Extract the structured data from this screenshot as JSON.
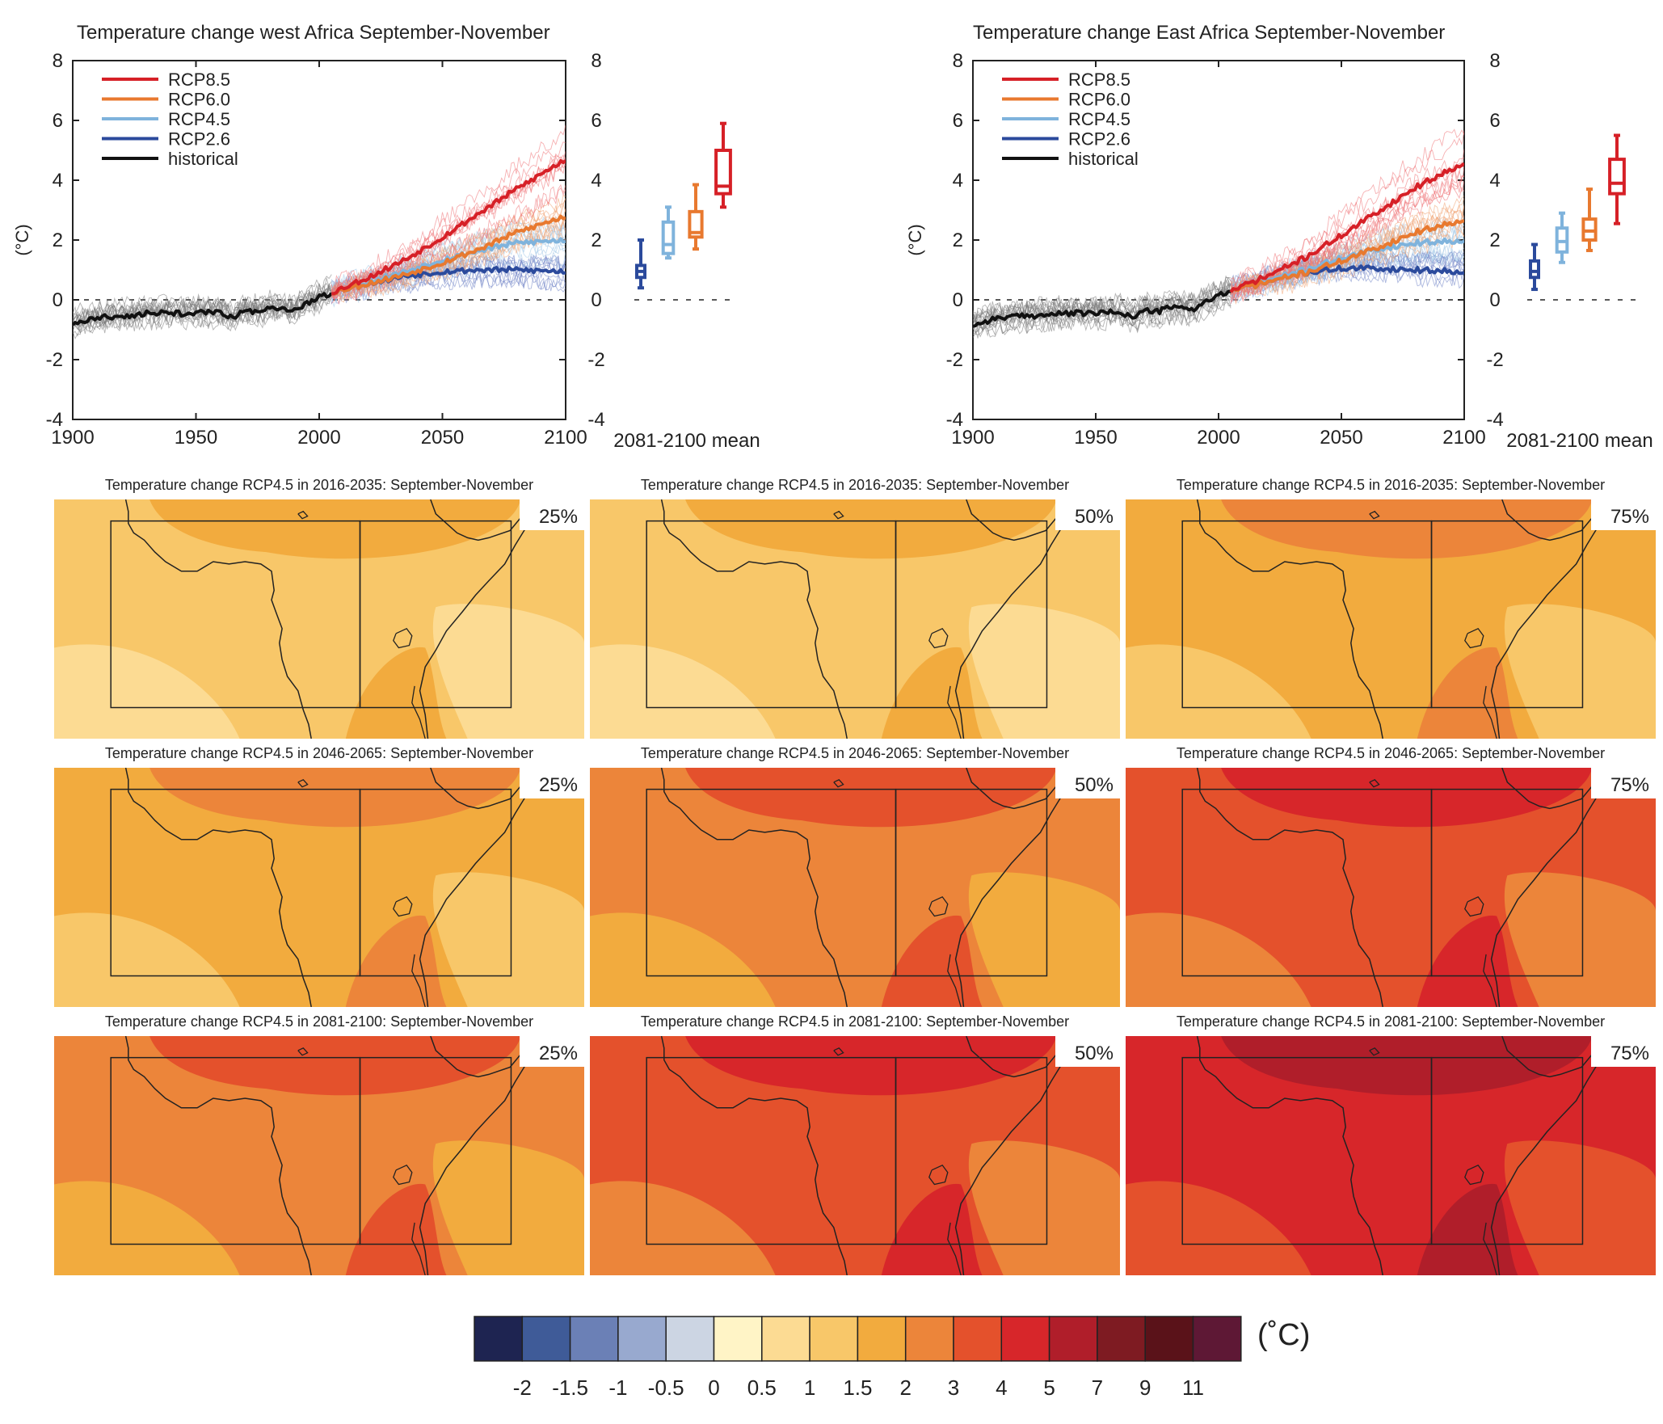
{
  "colors": {
    "rcp85": "#d62027",
    "rcp60": "#e8792f",
    "rcp45": "#7fb3dc",
    "rcp26": "#2b4a9c",
    "historical": "#111111",
    "axis": "#222222"
  },
  "chart_data": [
    {
      "type": "line",
      "title": "Temperature change west Africa September-November",
      "ylabel": "(°C)",
      "xlim": [
        1900,
        2100
      ],
      "ylim": [
        -4,
        8
      ],
      "xticks": [
        "1900",
        "1950",
        "2000",
        "2050",
        "2100"
      ],
      "yticks": [
        "-4",
        "-2",
        "0",
        "2",
        "4",
        "6",
        "8"
      ],
      "legend_position": "top-left",
      "legend": [
        "RCP8.5",
        "RCP6.0",
        "RCP4.5",
        "RCP2.6",
        "historical"
      ],
      "boxplot_label": "2081-2100 mean",
      "series": [
        {
          "name": "historical",
          "color": "#111111",
          "x": [
            1900,
            1910,
            1920,
            1930,
            1940,
            1950,
            1960,
            1965,
            1970,
            1975,
            1980,
            1990,
            1995,
            2005
          ],
          "y": [
            -0.8,
            -0.6,
            -0.55,
            -0.45,
            -0.45,
            -0.45,
            -0.4,
            -0.6,
            -0.35,
            -0.45,
            -0.3,
            -0.35,
            -0.1,
            0.25
          ]
        },
        {
          "name": "RCP2.6",
          "color": "#2b4a9c",
          "x": [
            2005,
            2020,
            2035,
            2050,
            2065,
            2080,
            2100
          ],
          "y": [
            0.25,
            0.55,
            0.8,
            0.95,
            1.0,
            1.0,
            0.95
          ]
        },
        {
          "name": "RCP4.5",
          "color": "#7fb3dc",
          "x": [
            2005,
            2020,
            2035,
            2050,
            2065,
            2080,
            2100
          ],
          "y": [
            0.25,
            0.6,
            0.95,
            1.35,
            1.65,
            1.9,
            2.0
          ]
        },
        {
          "name": "RCP6.0",
          "color": "#e8792f",
          "x": [
            2005,
            2020,
            2035,
            2050,
            2065,
            2080,
            2100
          ],
          "y": [
            0.25,
            0.55,
            0.85,
            1.25,
            1.7,
            2.25,
            2.8
          ]
        },
        {
          "name": "RCP8.5",
          "color": "#d62027",
          "x": [
            2005,
            2020,
            2035,
            2050,
            2065,
            2080,
            2100
          ],
          "y": [
            0.25,
            0.75,
            1.35,
            2.1,
            2.9,
            3.7,
            4.7
          ]
        }
      ],
      "boxplots": [
        {
          "name": "RCP2.6",
          "color": "#2b4a9c",
          "min": 0.4,
          "q1": 0.75,
          "median": 0.95,
          "q3": 1.15,
          "max": 2.0
        },
        {
          "name": "RCP4.5",
          "color": "#7fb3dc",
          "min": 1.4,
          "q1": 1.55,
          "median": 1.85,
          "q3": 2.6,
          "max": 3.1
        },
        {
          "name": "RCP6.0",
          "color": "#e8792f",
          "min": 1.7,
          "q1": 2.1,
          "median": 2.25,
          "q3": 2.95,
          "max": 3.85
        },
        {
          "name": "RCP8.5",
          "color": "#d62027",
          "min": 3.1,
          "q1": 3.55,
          "median": 3.8,
          "q3": 5.0,
          "max": 5.9
        }
      ]
    },
    {
      "type": "line",
      "title": "Temperature change East Africa September-November",
      "ylabel": "(°C)",
      "xlim": [
        1900,
        2100
      ],
      "ylim": [
        -4,
        8
      ],
      "xticks": [
        "1900",
        "1950",
        "2000",
        "2050",
        "2100"
      ],
      "yticks": [
        "-4",
        "-2",
        "0",
        "2",
        "4",
        "6",
        "8"
      ],
      "legend_position": "top-left",
      "legend": [
        "RCP8.5",
        "RCP6.0",
        "RCP4.5",
        "RCP2.6",
        "historical"
      ],
      "boxplot_label": "2081-2100 mean",
      "series": [
        {
          "name": "historical",
          "color": "#111111",
          "x": [
            1900,
            1910,
            1920,
            1930,
            1940,
            1950,
            1960,
            1965,
            1970,
            1975,
            1980,
            1990,
            1995,
            2005
          ],
          "y": [
            -0.85,
            -0.6,
            -0.55,
            -0.5,
            -0.45,
            -0.45,
            -0.4,
            -0.6,
            -0.35,
            -0.4,
            -0.25,
            -0.3,
            -0.05,
            0.3
          ]
        },
        {
          "name": "RCP2.6",
          "color": "#2b4a9c",
          "x": [
            2005,
            2020,
            2035,
            2050,
            2065,
            2080,
            2100
          ],
          "y": [
            0.3,
            0.6,
            0.9,
            1.05,
            1.05,
            1.0,
            0.95
          ]
        },
        {
          "name": "RCP4.5",
          "color": "#7fb3dc",
          "x": [
            2005,
            2020,
            2035,
            2050,
            2065,
            2080,
            2100
          ],
          "y": [
            0.3,
            0.65,
            1.0,
            1.4,
            1.7,
            1.9,
            2.0
          ]
        },
        {
          "name": "RCP6.0",
          "color": "#e8792f",
          "x": [
            2005,
            2020,
            2035,
            2050,
            2065,
            2080,
            2100
          ],
          "y": [
            0.3,
            0.6,
            0.9,
            1.3,
            1.75,
            2.25,
            2.7
          ]
        },
        {
          "name": "RCP8.5",
          "color": "#d62027",
          "x": [
            2005,
            2020,
            2035,
            2050,
            2065,
            2080,
            2100
          ],
          "y": [
            0.3,
            0.8,
            1.4,
            2.15,
            2.95,
            3.75,
            4.6
          ]
        }
      ],
      "boxplots": [
        {
          "name": "RCP2.6",
          "color": "#2b4a9c",
          "min": 0.35,
          "q1": 0.75,
          "median": 0.95,
          "q3": 1.3,
          "max": 1.85
        },
        {
          "name": "RCP4.5",
          "color": "#7fb3dc",
          "min": 1.25,
          "q1": 1.6,
          "median": 1.95,
          "q3": 2.4,
          "max": 2.9
        },
        {
          "name": "RCP6.0",
          "color": "#e8792f",
          "min": 1.65,
          "q1": 2.0,
          "median": 2.3,
          "q3": 2.7,
          "max": 3.7
        },
        {
          "name": "RCP8.5",
          "color": "#d62027",
          "min": 2.55,
          "q1": 3.55,
          "median": 3.9,
          "q3": 4.7,
          "max": 5.5
        }
      ]
    },
    {
      "type": "heatmap",
      "panel_titles": [
        "Temperature change RCP4.5 in 2016-2035: September-November",
        "Temperature change RCP4.5 in 2046-2065: September-November",
        "Temperature change RCP4.5 in 2081-2100: September-November"
      ],
      "percentiles": [
        "25%",
        "50%",
        "75%"
      ],
      "colorbar": {
        "unit": "(˚C)",
        "tick_labels": [
          "-2",
          "-1.5",
          "-1",
          "-0.5",
          "0",
          "0.5",
          "1",
          "1.5",
          "2",
          "3",
          "4",
          "5",
          "7",
          "9",
          "11"
        ],
        "colors": [
          "#1e2451",
          "#3f5b98",
          "#6b80b6",
          "#98a9cf",
          "#ccd5e3",
          "#fff4c6",
          "#fcdb93",
          "#f8c769",
          "#f2ab3e",
          "#ec853a",
          "#e4512c",
          "#d7262a",
          "#b01e2a",
          "#7e1b22",
          "#5a1219",
          "#5e1835"
        ]
      },
      "dominant_value_class": [
        [
          1,
          1,
          2
        ],
        [
          2,
          3,
          4
        ],
        [
          3,
          4,
          5
        ]
      ]
    }
  ]
}
